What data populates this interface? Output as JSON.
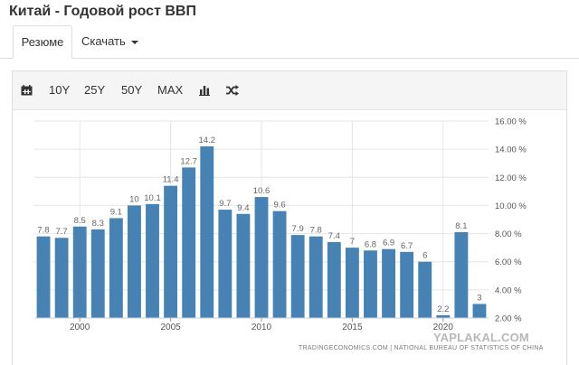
{
  "page": {
    "title": "Китай - Годовой рост ВВП"
  },
  "tabs": {
    "summary": "Резюме",
    "download": "Скачать"
  },
  "toolbar": {
    "calendar_icon": "calendar-icon",
    "ranges": [
      "10Y",
      "25Y",
      "50Y",
      "MAX"
    ],
    "chart_type_icon": "bar-chart-icon",
    "compare_icon": "shuffle-icon"
  },
  "colors": {
    "bar": "#4682b4",
    "grid": "#e6e6e6",
    "label": "#666666"
  },
  "chart_data": {
    "type": "bar",
    "x": [
      1998,
      1999,
      2000,
      2001,
      2002,
      2003,
      2004,
      2005,
      2006,
      2007,
      2008,
      2009,
      2010,
      2011,
      2012,
      2013,
      2014,
      2015,
      2016,
      2017,
      2018,
      2019,
      2020,
      2021,
      2022
    ],
    "values": [
      7.8,
      7.7,
      8.5,
      8.3,
      9.1,
      10,
      10.1,
      11.4,
      12.7,
      14.2,
      9.7,
      9.4,
      10.6,
      9.6,
      7.9,
      7.8,
      7.4,
      7,
      6.8,
      6.9,
      6.7,
      6,
      2.2,
      8.1,
      3
    ],
    "data_labels": [
      "7.8",
      "7.7",
      "8.5",
      "8.3",
      "9.1",
      "10",
      "10.1",
      "11.4",
      "12.7",
      "14.2",
      "9.7",
      "9.4",
      "10.6",
      "9.6",
      "7.9",
      "7.8",
      "7.4",
      "7",
      "6.8",
      "6.9",
      "6.7",
      "6",
      "2.2",
      "8.1",
      "3"
    ],
    "x_ticks": [
      "2000",
      "2005",
      "2010",
      "2015",
      "2020"
    ],
    "x_tick_values": [
      2000,
      2005,
      2010,
      2015,
      2020
    ],
    "y_ticks": [
      "2.00 %",
      "4.00 %",
      "6.00 %",
      "8.00 %",
      "10.00 %",
      "12.00 %",
      "14.00 %",
      "16.00 %"
    ],
    "y_tick_values": [
      2,
      4,
      6,
      8,
      10,
      12,
      14,
      16
    ],
    "ylim": [
      2,
      16
    ],
    "y_axis_position": "right",
    "grid": true
  },
  "source": "TRADINGECONOMICS.COM  |  NATIONAL BUREAU OF STATISTICS OF CHINA",
  "watermark": "YAPLAKAL.COM"
}
